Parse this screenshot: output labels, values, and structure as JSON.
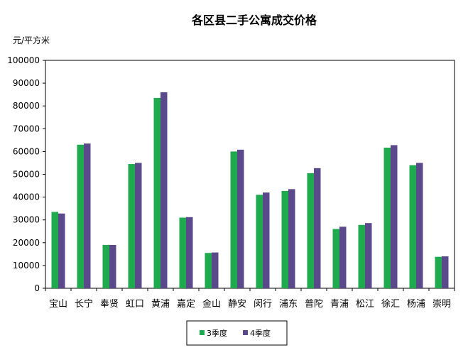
{
  "chart_data": {
    "type": "bar",
    "title": "各区县二手公寓成交价格",
    "ylabel": "元/平方米",
    "ylim": [
      0,
      100000
    ],
    "yticks": [
      0,
      10000,
      20000,
      30000,
      40000,
      50000,
      60000,
      70000,
      80000,
      90000,
      100000
    ],
    "categories": [
      "宝山",
      "长宁",
      "奉贤",
      "虹口",
      "黄浦",
      "嘉定",
      "金山",
      "静安",
      "闵行",
      "浦东",
      "普陀",
      "青浦",
      "松江",
      "徐汇",
      "杨浦",
      "崇明"
    ],
    "series": [
      {
        "name": "3季度",
        "color": "#1faa4f",
        "values": [
          33500,
          63000,
          19000,
          54500,
          83500,
          31000,
          15500,
          60000,
          41000,
          42700,
          50500,
          26000,
          27800,
          61700,
          54000,
          13800
        ]
      },
      {
        "name": "4季度",
        "color": "#5b4a8b",
        "values": [
          32800,
          63500,
          19000,
          55000,
          86000,
          31200,
          15700,
          60800,
          42000,
          43500,
          52700,
          27000,
          28600,
          62800,
          55000,
          14000
        ]
      }
    ],
    "grid": false,
    "legend": "bottom-center",
    "colors": {
      "plot_border": "#000000"
    }
  }
}
